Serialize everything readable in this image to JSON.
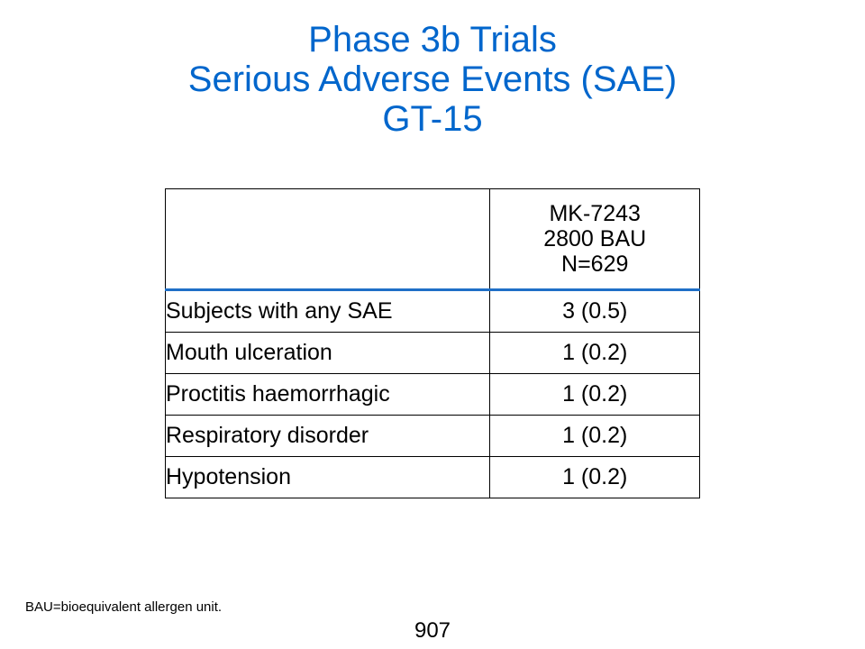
{
  "title": {
    "line1": "Phase 3b Trials",
    "line2": "Serious Adverse Events (SAE)",
    "line3": "GT-15"
  },
  "colors": {
    "title": "#0066cc",
    "header_rule": "#1f6fc7"
  },
  "table": {
    "header": {
      "label": "",
      "value_lines": [
        "MK-7243",
        "2800 BAU",
        "N=629"
      ]
    },
    "rows": [
      {
        "label": "Subjects with any SAE",
        "value": "3 (0.5)"
      },
      {
        "label": "Mouth ulceration",
        "value": "1 (0.2)"
      },
      {
        "label": "Proctitis haemorrhagic",
        "value": "1 (0.2)"
      },
      {
        "label": "Respiratory disorder",
        "value": "1 (0.2)"
      },
      {
        "label": "Hypotension",
        "value": "1 (0.2)"
      }
    ]
  },
  "footnote": "BAU=bioequivalent allergen unit.",
  "page_number": "907"
}
